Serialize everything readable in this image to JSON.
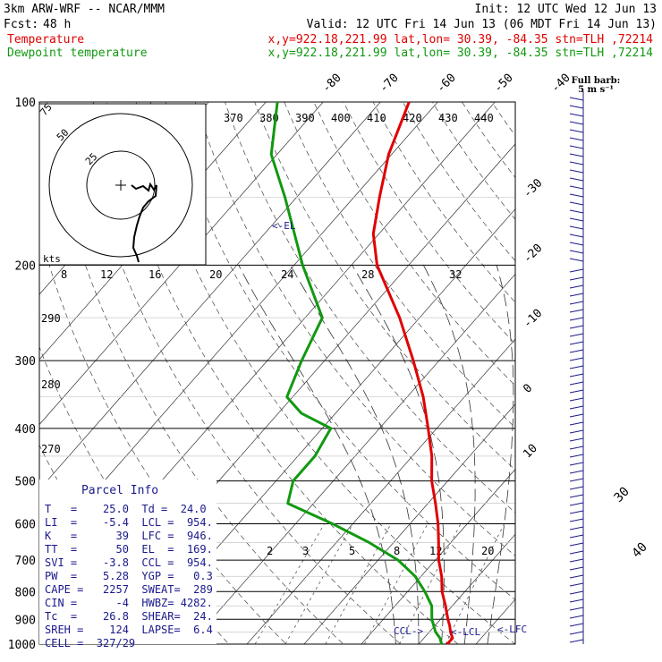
{
  "header": {
    "model": "3km ARW-WRF -- NCAR/MMM",
    "init": "Init: 12 UTC Wed 12 Jun 13",
    "fcst_label": "Fcst:",
    "fcst_value": "48 h",
    "valid": "Valid: 12 UTC Fri 14 Jun 13 (06 MDT Fri 14 Jun 13)",
    "temp_label": "Temperature",
    "dew_label": "Dewpoint temperature",
    "temp_info": "x,y=922.18,221.99   lat,lon= 30.39, -84.35   stn=TLH ,72214",
    "dew_info": "x,y=922.18,221.99   lat,lon= 30.39, -84.35   stn=TLH ,72214"
  },
  "barb_legend": {
    "line1": "Full barb:",
    "line2": "5 m s⁻¹"
  },
  "labels": {
    "el": "<-EL",
    "lcl": "<-LCL",
    "lfc": "<-LFC",
    "ccl": "CCL->",
    "hodo_units": "kts"
  },
  "parcel_info": {
    "title": "Parcel Info",
    "rows": [
      "T   =    25.0  Td =  24.0",
      "LI  =    -5.4  LCL =  954.",
      "K   =      39  LFC =  946.",
      "TT  =      50  EL  =  169.",
      "SVI =    -3.8  CCL =  954.",
      "PW  =    5.28  YGP =   0.3",
      "CAPE =   2257  SWEAT=  289",
      "CIN =      -4  HWBZ= 4282.",
      "Tc  =    26.8  SHEAR=  24.",
      "SREH =    124  LAPSE=  6.4",
      "CELL =  327/29"
    ]
  },
  "colors": {
    "temperature": "#e00000",
    "dewpoint": "#119911",
    "frame": "#000000",
    "text_blue": "#1a1a8c",
    "barbs": "#1a1a8c",
    "hodograph": "#000000"
  },
  "chart_data": {
    "type": "skew-t log-p sounding",
    "y_axis": {
      "quantity": "pressure",
      "units": "hPa",
      "scale": "log",
      "range": [
        1000,
        100
      ],
      "tick_labels": [
        "1000",
        "900",
        "800",
        "700",
        "600",
        "500",
        "400",
        "300",
        "200",
        "100"
      ]
    },
    "isotherm_labels_top": [
      "-80",
      "-70",
      "-60",
      "-50",
      "-40"
    ],
    "isotherm_labels_right": [
      "-30",
      "-20",
      "-10",
      "0",
      "10"
    ],
    "isotherm_labels_corner": [
      "30",
      "40"
    ],
    "theta_e_labels": [
      "370",
      "380",
      "390",
      "400",
      "410",
      "420",
      "430",
      "440"
    ],
    "theta_labels_left": [
      "290",
      "280",
      "270"
    ],
    "mixing_ratio_labels": [
      "2",
      "3",
      "5",
      "8",
      "12",
      "20"
    ],
    "series": [
      {
        "name": "Temperature",
        "points": [
          [
            1000,
            25.0
          ],
          [
            975,
            25.0
          ],
          [
            950,
            23.7
          ],
          [
            925,
            22.6
          ],
          [
            900,
            21.3
          ],
          [
            850,
            18.8
          ],
          [
            800,
            16.0
          ],
          [
            750,
            13.6
          ],
          [
            700,
            10.6
          ],
          [
            650,
            7.9
          ],
          [
            600,
            4.9
          ],
          [
            550,
            1.3
          ],
          [
            500,
            -2.8
          ],
          [
            450,
            -6.6
          ],
          [
            400,
            -11.5
          ],
          [
            350,
            -17.2
          ],
          [
            300,
            -24.5
          ],
          [
            250,
            -33.5
          ],
          [
            200,
            -45.5
          ],
          [
            175,
            -51.0
          ],
          [
            150,
            -55.5
          ],
          [
            125,
            -60.5
          ],
          [
            100,
            -65.0
          ]
        ]
      },
      {
        "name": "Dewpoint temperature",
        "points": [
          [
            1000,
            24.0
          ],
          [
            975,
            22.8
          ],
          [
            950,
            21.1
          ],
          [
            925,
            19.8
          ],
          [
            900,
            18.5
          ],
          [
            850,
            16.4
          ],
          [
            800,
            13.0
          ],
          [
            750,
            9.0
          ],
          [
            700,
            3.5
          ],
          [
            650,
            -4.2
          ],
          [
            600,
            -13.5
          ],
          [
            550,
            -24.5
          ],
          [
            500,
            -27.0
          ],
          [
            450,
            -27.0
          ],
          [
            400,
            -28.5
          ],
          [
            375,
            -36.0
          ],
          [
            350,
            -41.0
          ],
          [
            300,
            -44.0
          ],
          [
            250,
            -47.0
          ],
          [
            200,
            -58.5
          ],
          [
            150,
            -72.0
          ],
          [
            125,
            -81.0
          ],
          [
            100,
            -88.0
          ]
        ]
      }
    ],
    "hodograph": {
      "units": "kts",
      "speed_ring_labels": [
        "75",
        "50",
        "25"
      ],
      "speed_axis_labels": [
        "8",
        "12",
        "16",
        "20",
        "24",
        "28",
        "32"
      ]
    },
    "grid": true
  }
}
